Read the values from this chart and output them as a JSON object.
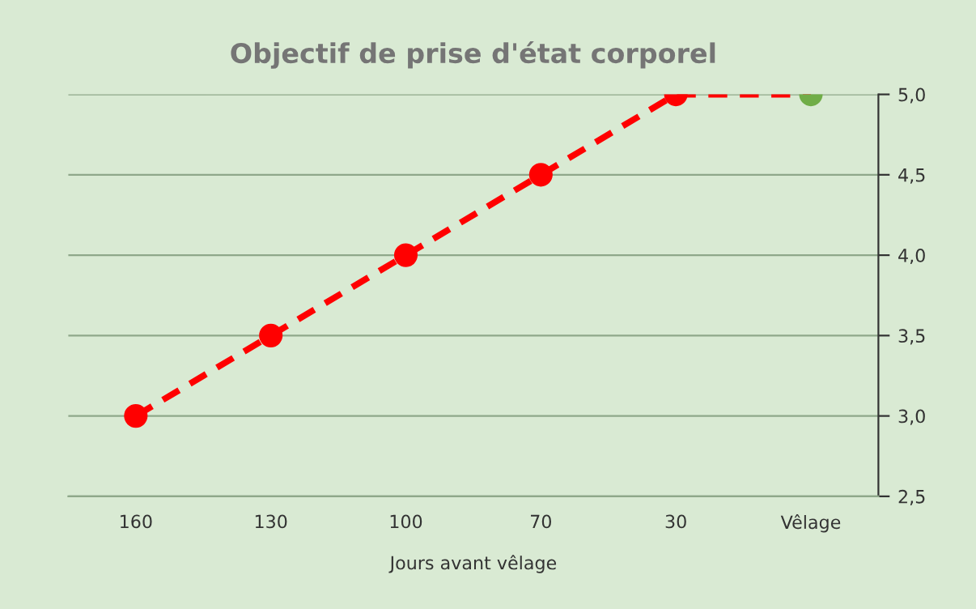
{
  "chart_data": {
    "type": "line",
    "title": "Objectif de prise d'état corporel",
    "xlabel": "Jours avant vêlage",
    "categories": [
      "160",
      "130",
      "100",
      "70",
      "30",
      "Vêlage"
    ],
    "series": [
      {
        "color": "#ff0000",
        "colors": [
          "#ff0000",
          "#ff0000",
          "#ff0000",
          "#ff0000",
          "#ff0000",
          "#70ad47"
        ],
        "values": [
          3.0,
          3.5,
          4.0,
          4.5,
          5.0,
          5.0
        ]
      }
    ],
    "ylim": [
      2.5,
      5.0
    ],
    "yticks": [
      {
        "value": 2.5,
        "label": "2,5"
      },
      {
        "value": 3.0,
        "label": "3,0"
      },
      {
        "value": 3.5,
        "label": "3,5"
      },
      {
        "value": 4.0,
        "label": "4,0"
      },
      {
        "value": 4.5,
        "label": "4,5"
      },
      {
        "value": 5.0,
        "label": "5,0"
      }
    ],
    "grid": "y",
    "marker": "circle",
    "line_style": "dashed"
  }
}
